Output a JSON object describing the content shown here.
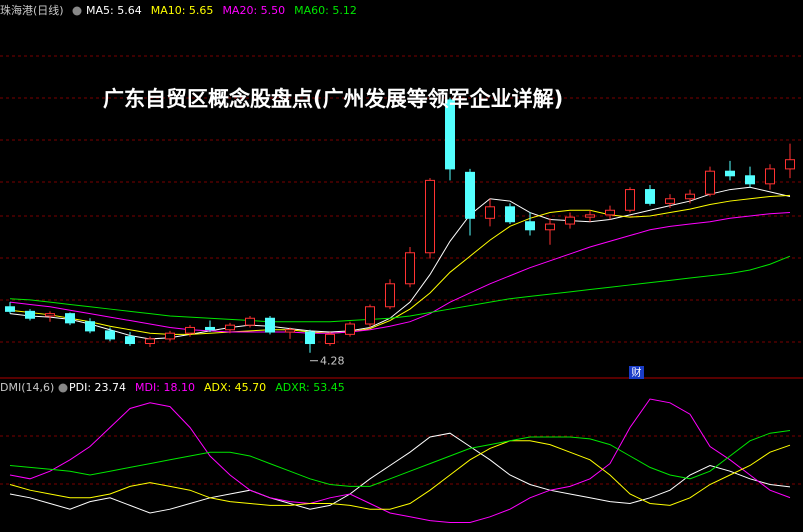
{
  "chart_data": [
    {
      "type": "candlestick",
      "title": "珠海港(日线)",
      "headline": "广东自贸区概念股盘点(广州发展等领军企业详解)",
      "low_label": "4.28",
      "ylim": [
        4.06,
        7.35
      ],
      "up_color": "#ff3232",
      "down_color": "#54ffff",
      "open": [
        4.68,
        4.64,
        4.6,
        4.62,
        4.55,
        4.47,
        4.42,
        4.36,
        4.4,
        4.45,
        4.5,
        4.48,
        4.52,
        4.58,
        4.46,
        4.46,
        4.36,
        4.44,
        4.53,
        4.68,
        4.88,
        5.15,
        6.48,
        5.85,
        5.45,
        5.55,
        5.42,
        5.35,
        5.4,
        5.46,
        5.48,
        5.52,
        5.7,
        5.58,
        5.62,
        5.66,
        5.86,
        5.82,
        5.75,
        5.88
      ],
      "high": [
        4.72,
        4.66,
        4.64,
        4.63,
        4.58,
        4.5,
        4.46,
        4.42,
        4.47,
        4.52,
        4.56,
        4.54,
        4.6,
        4.6,
        4.5,
        4.48,
        4.46,
        4.55,
        4.7,
        4.92,
        5.2,
        5.8,
        6.5,
        5.88,
        5.62,
        5.58,
        5.5,
        5.45,
        5.5,
        5.52,
        5.56,
        5.72,
        5.74,
        5.66,
        5.7,
        5.9,
        5.95,
        5.9,
        5.92,
        6.1
      ],
      "low": [
        4.62,
        4.56,
        4.55,
        4.52,
        4.45,
        4.38,
        4.34,
        4.33,
        4.38,
        4.42,
        4.46,
        4.45,
        4.5,
        4.44,
        4.4,
        4.28,
        4.34,
        4.42,
        4.5,
        4.66,
        4.85,
        5.1,
        5.78,
        5.3,
        5.38,
        5.4,
        5.3,
        5.22,
        5.36,
        5.42,
        5.44,
        5.5,
        5.56,
        5.54,
        5.58,
        5.64,
        5.78,
        5.72,
        5.7,
        5.8
      ],
      "close": [
        4.64,
        4.58,
        4.62,
        4.54,
        4.47,
        4.4,
        4.36,
        4.4,
        4.45,
        4.5,
        4.48,
        4.52,
        4.58,
        4.46,
        4.48,
        4.36,
        4.44,
        4.53,
        4.68,
        4.88,
        5.15,
        5.78,
        5.88,
        5.45,
        5.55,
        5.42,
        5.35,
        5.4,
        5.46,
        5.48,
        5.52,
        5.7,
        5.58,
        5.62,
        5.66,
        5.86,
        5.82,
        5.75,
        5.88,
        5.96
      ],
      "series": [
        {
          "name": "MA5: 5.64",
          "color": "#ffffff",
          "values": [
            4.62,
            4.6,
            4.59,
            4.57,
            4.53,
            4.48,
            4.43,
            4.4,
            4.41,
            4.44,
            4.47,
            4.5,
            4.52,
            4.51,
            4.49,
            4.47,
            4.46,
            4.47,
            4.5,
            4.58,
            4.72,
            4.96,
            5.25,
            5.48,
            5.62,
            5.6,
            5.5,
            5.44,
            5.43,
            5.42,
            5.44,
            5.48,
            5.52,
            5.56,
            5.6,
            5.66,
            5.7,
            5.72,
            5.68,
            5.64
          ]
        },
        {
          "name": "MA10: 5.65",
          "color": "#ffff00",
          "values": [
            4.65,
            4.63,
            4.61,
            4.58,
            4.55,
            4.51,
            4.48,
            4.45,
            4.44,
            4.44,
            4.45,
            4.46,
            4.47,
            4.48,
            4.48,
            4.46,
            4.45,
            4.46,
            4.49,
            4.56,
            4.66,
            4.8,
            4.98,
            5.12,
            5.26,
            5.38,
            5.45,
            5.5,
            5.52,
            5.52,
            5.48,
            5.46,
            5.47,
            5.5,
            5.53,
            5.57,
            5.6,
            5.62,
            5.64,
            5.65
          ]
        },
        {
          "name": "MA20: 5.50",
          "color": "#ff00ff",
          "values": [
            4.72,
            4.7,
            4.68,
            4.65,
            4.62,
            4.59,
            4.56,
            4.53,
            4.5,
            4.48,
            4.47,
            4.46,
            4.46,
            4.46,
            4.46,
            4.45,
            4.45,
            4.46,
            4.48,
            4.51,
            4.55,
            4.62,
            4.72,
            4.8,
            4.88,
            4.95,
            5.02,
            5.08,
            5.14,
            5.2,
            5.25,
            5.3,
            5.35,
            5.38,
            5.4,
            5.42,
            5.45,
            5.47,
            5.49,
            5.5
          ]
        },
        {
          "name": "MA60: 5.12",
          "color": "#00e600",
          "values": [
            4.75,
            4.74,
            4.72,
            4.7,
            4.68,
            4.66,
            4.64,
            4.62,
            4.6,
            4.59,
            4.58,
            4.57,
            4.56,
            4.55,
            4.55,
            4.55,
            4.55,
            4.56,
            4.57,
            4.58,
            4.6,
            4.63,
            4.66,
            4.69,
            4.72,
            4.75,
            4.77,
            4.79,
            4.81,
            4.83,
            4.85,
            4.87,
            4.89,
            4.91,
            4.93,
            4.95,
            4.97,
            5.0,
            5.05,
            5.12
          ]
        }
      ]
    },
    {
      "type": "line",
      "title": "DMI(14,6)",
      "ylim": [
        0,
        80
      ],
      "series": [
        {
          "name": "PDI: 23.74",
          "color": "#ffffff",
          "values": [
            20,
            18,
            15,
            12,
            16,
            18,
            14,
            10,
            12,
            15,
            18,
            20,
            22,
            18,
            15,
            12,
            14,
            20,
            28,
            35,
            42,
            50,
            52,
            45,
            38,
            30,
            25,
            22,
            20,
            18,
            16,
            15,
            18,
            22,
            30,
            35,
            32,
            28,
            25,
            23.74
          ]
        },
        {
          "name": "MDI: 18.10",
          "color": "#ff00ff",
          "values": [
            30,
            28,
            32,
            38,
            45,
            55,
            65,
            68,
            66,
            55,
            40,
            30,
            22,
            18,
            16,
            15,
            18,
            20,
            15,
            10,
            8,
            6,
            5,
            5,
            8,
            12,
            18,
            22,
            24,
            28,
            36,
            55,
            70,
            68,
            62,
            45,
            38,
            30,
            22,
            18.1
          ]
        },
        {
          "name": "ADX: 45.70",
          "color": "#ffff00",
          "values": [
            25,
            22,
            20,
            18,
            18,
            20,
            24,
            26,
            24,
            22,
            18,
            16,
            15,
            14,
            14,
            15,
            15,
            14,
            12,
            12,
            15,
            22,
            30,
            38,
            44,
            48,
            48,
            46,
            42,
            38,
            30,
            20,
            15,
            14,
            18,
            25,
            30,
            35,
            42,
            45.7
          ]
        },
        {
          "name": "ADXR: 53.45",
          "color": "#00e600",
          "values": [
            35,
            34,
            33,
            32,
            30,
            32,
            34,
            36,
            38,
            40,
            42,
            42,
            40,
            36,
            32,
            28,
            25,
            24,
            24,
            28,
            32,
            36,
            40,
            44,
            46,
            48,
            50,
            50,
            50,
            49,
            46,
            40,
            34,
            30,
            28,
            32,
            40,
            48,
            52,
            53.45
          ]
        }
      ]
    }
  ]
}
